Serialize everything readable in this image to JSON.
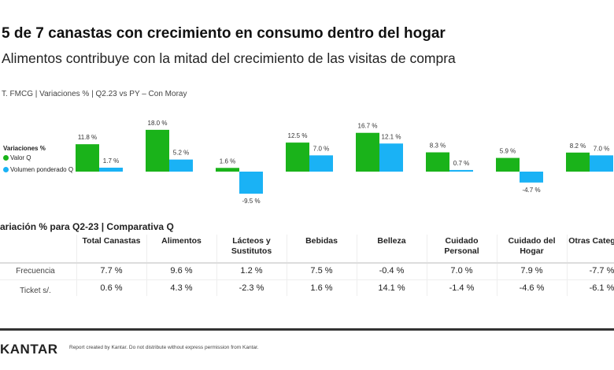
{
  "header": {
    "title": "5 de 7 canastas con crecimiento en consumo dentro del hogar",
    "subtitle": "Alimentos contribuye con la mitad del crecimiento de las visitas de compra",
    "source": "T. FMCG | Variaciones % | Q2.23 vs PY – Con Moray"
  },
  "chart_data": {
    "type": "bar",
    "legend_title": "Variaciones %",
    "legend_position": "left",
    "categories": [
      "Total Canastas",
      "Alimentos",
      "Lácteos y Sustitutos",
      "Bebidas",
      "Belleza",
      "Cuidado Personal",
      "Cuidado del Hogar",
      "Otras Categorías"
    ],
    "series": [
      {
        "name": "Valor Q",
        "color": "#1ab31a",
        "values": [
          11.8,
          18.0,
          1.6,
          12.5,
          16.7,
          8.3,
          5.9,
          8.2
        ]
      },
      {
        "name": "Volumen ponderado Q",
        "color": "#1ab2f5",
        "values": [
          1.7,
          5.2,
          -9.5,
          7.0,
          12.1,
          0.7,
          -4.7,
          7.0
        ]
      }
    ],
    "value_suffix": " %",
    "grid": false
  },
  "table": {
    "title": "ariación % para Q2-23 | Comparativa Q",
    "columns": [
      "Total Canastas",
      "Alimentos",
      "Lácteos y Sustitutos",
      "Bebidas",
      "Belleza",
      "Cuidado Personal",
      "Cuidado del Hogar",
      "Otras Categorías"
    ],
    "rows": [
      {
        "label": "Frecuencia",
        "values": [
          "7.7 %",
          "9.6 %",
          "1.2 %",
          "7.5 %",
          "-0.4 %",
          "7.0 %",
          "7.9 %",
          "-7.7 %"
        ]
      },
      {
        "label": "Ticket s/.",
        "values": [
          "0.6 %",
          "4.3 %",
          "-2.3 %",
          "1.6 %",
          "14.1 %",
          "-1.4 %",
          "-4.6 %",
          "-6.1 %"
        ]
      }
    ]
  },
  "footer": {
    "logo": "KANTAR",
    "note": "Report created by Kantar. Do not distribute without express permission from Kantar."
  }
}
